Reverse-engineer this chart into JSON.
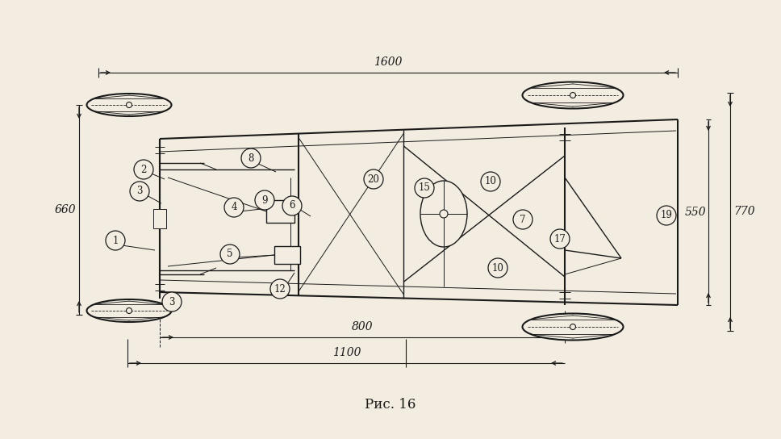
{
  "bg_color": "#f2ede0",
  "line_color": "#1a1a1a",
  "title": "Рис. 16",
  "title_fontsize": 12,
  "fig_width": 9.68,
  "fig_height": 5.44,
  "dpi": 100
}
